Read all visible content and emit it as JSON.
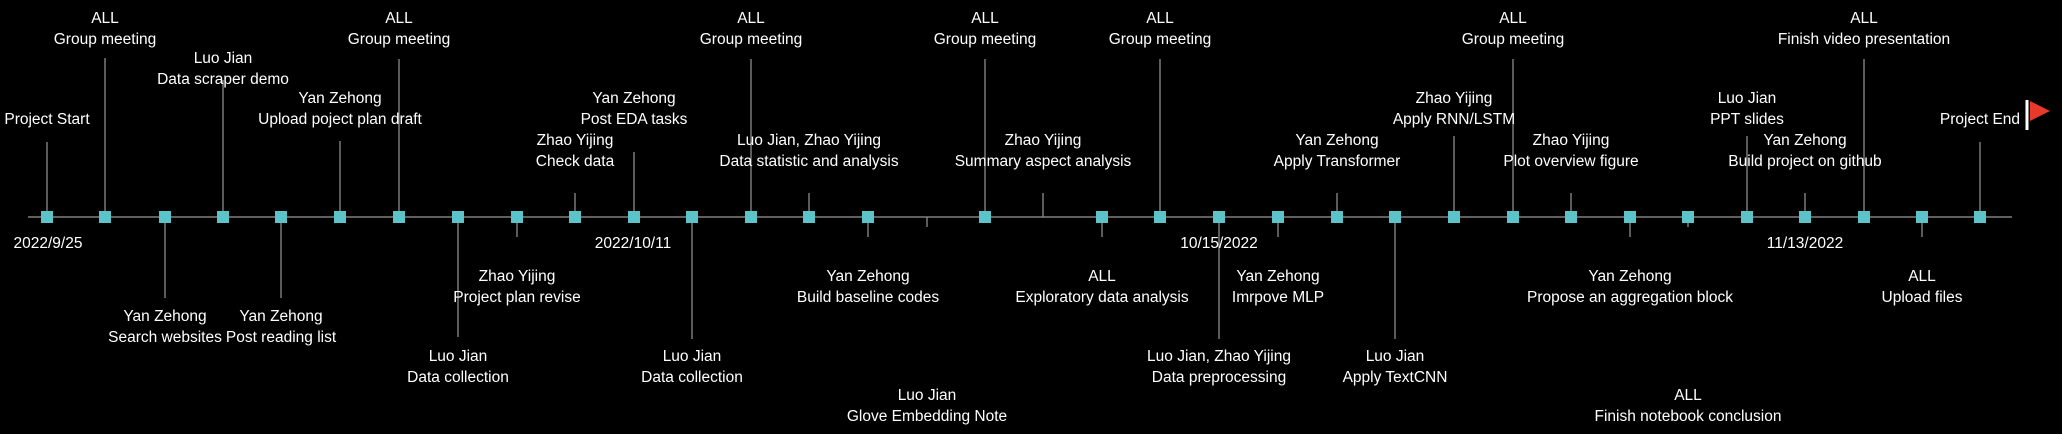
{
  "colors": {
    "background": "#000000",
    "axis": "#7f7f7f",
    "marker": "#5cc4c8",
    "stem": "#8c8c8c",
    "text": "#ffffff",
    "flag": "#e8392b"
  },
  "date_labels": [
    {
      "id": "d1",
      "text": "2022/9/25"
    },
    {
      "id": "d2",
      "text": "2022/10/11"
    },
    {
      "id": "d3",
      "text": "10/15/2022"
    },
    {
      "id": "d4",
      "text": "11/13/2022"
    }
  ],
  "events": [
    {
      "id": "e1",
      "lines": [
        "Project Start"
      ]
    },
    {
      "id": "e2",
      "lines": [
        "ALL",
        "Group meeting"
      ]
    },
    {
      "id": "e3",
      "lines": [
        "Yan Zehong",
        "Search websites"
      ]
    },
    {
      "id": "e4",
      "lines": [
        "Luo Jian",
        "Data scraper demo"
      ]
    },
    {
      "id": "e5",
      "lines": [
        "Yan Zehong",
        "Post reading list"
      ]
    },
    {
      "id": "e6",
      "lines": [
        "Yan Zehong",
        "Upload poject plan draft"
      ]
    },
    {
      "id": "e7",
      "lines": [
        "ALL",
        "Group meeting"
      ]
    },
    {
      "id": "e8",
      "lines": [
        "Luo Jian",
        "Data collection"
      ]
    },
    {
      "id": "e9",
      "lines": [
        "Zhao Yijing",
        "Project plan revise"
      ]
    },
    {
      "id": "e10",
      "lines": [
        "Zhao Yijing",
        "Check data"
      ]
    },
    {
      "id": "e11",
      "lines": [
        "Yan Zehong",
        "Post EDA tasks"
      ]
    },
    {
      "id": "e12",
      "lines": [
        "Luo Jian",
        "Data collection"
      ]
    },
    {
      "id": "e13",
      "lines": [
        "ALL",
        "Group meeting"
      ]
    },
    {
      "id": "e14",
      "lines": [
        "Luo Jian, Zhao Yijing",
        "Data statistic and analysis"
      ]
    },
    {
      "id": "e15",
      "lines": [
        "Yan Zehong",
        "Build baseline codes"
      ]
    },
    {
      "id": "e16",
      "lines": [
        "Luo Jian",
        "Glove Embedding Note"
      ]
    },
    {
      "id": "e17",
      "lines": [
        "ALL",
        "Group meeting"
      ]
    },
    {
      "id": "e18",
      "lines": [
        "Zhao Yijing",
        "Summary aspect analysis"
      ]
    },
    {
      "id": "e19",
      "lines": [
        "ALL",
        "Exploratory data analysis"
      ]
    },
    {
      "id": "e20",
      "lines": [
        "ALL",
        "Group meeting"
      ]
    },
    {
      "id": "e21",
      "lines": [
        "Luo Jian, Zhao Yijing",
        "Data preprocessing"
      ]
    },
    {
      "id": "e22",
      "lines": [
        "Yan Zehong",
        "Imrpove MLP"
      ]
    },
    {
      "id": "e23",
      "lines": [
        "Yan Zehong",
        "Apply Transformer"
      ]
    },
    {
      "id": "e24",
      "lines": [
        "Luo Jian",
        "Apply TextCNN"
      ]
    },
    {
      "id": "e25",
      "lines": [
        "Zhao Yijing",
        "Apply RNN/LSTM"
      ]
    },
    {
      "id": "e26",
      "lines": [
        "ALL",
        "Group meeting"
      ]
    },
    {
      "id": "e27",
      "lines": [
        "Zhao Yijing",
        "Plot overview figure"
      ]
    },
    {
      "id": "e28",
      "lines": [
        "Yan Zehong",
        "Propose an aggregation block"
      ]
    },
    {
      "id": "e29",
      "lines": [
        "ALL",
        "Finish notebook conclusion"
      ]
    },
    {
      "id": "e30",
      "lines": [
        "Luo Jian",
        "PPT slides"
      ]
    },
    {
      "id": "e31",
      "lines": [
        "Yan Zehong",
        "Build project on github"
      ]
    },
    {
      "id": "e32",
      "lines": [
        "ALL",
        "Finish video presentation"
      ]
    },
    {
      "id": "e33",
      "lines": [
        "ALL",
        "Upload  files"
      ]
    },
    {
      "id": "e34",
      "lines": [
        "Project End"
      ]
    }
  ]
}
